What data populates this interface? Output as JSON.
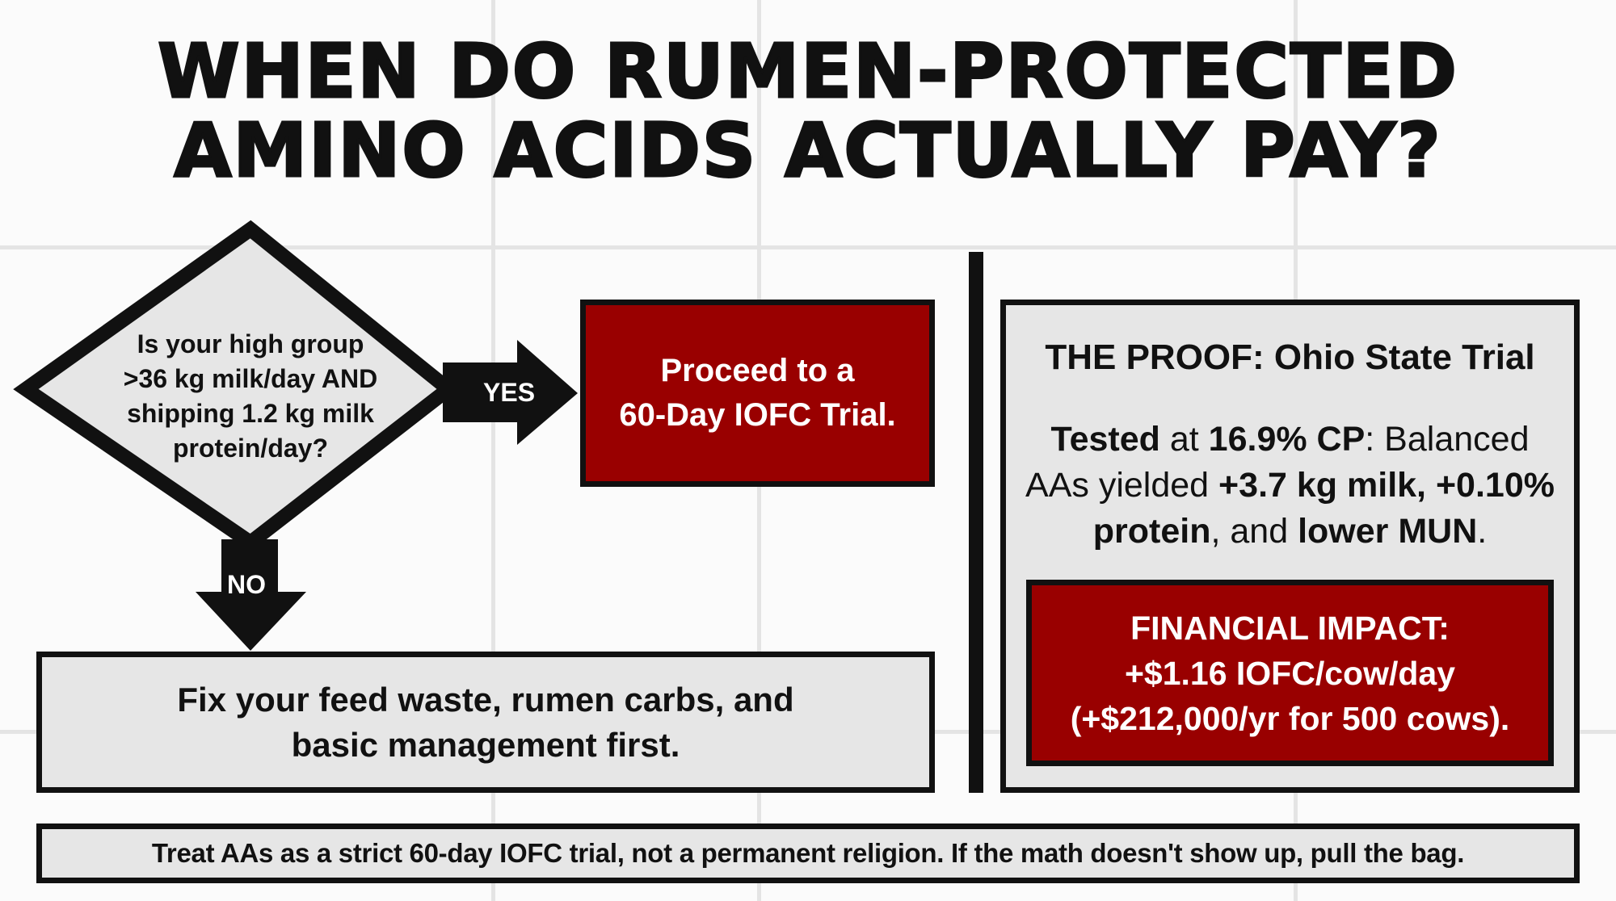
{
  "title": {
    "line1": "WHEN DO RUMEN-PROTECTED",
    "line2": "AMINO ACIDS ACTUALLY PAY?"
  },
  "decision": {
    "question_lines": [
      "Is your high group",
      ">36 kg milk/day AND",
      "shipping 1.2 kg milk",
      "protein/day?"
    ],
    "yes_label": "YES",
    "no_label": "NO"
  },
  "yes_outcome": {
    "lines": [
      "Proceed to a",
      "60-Day IOFC Trial."
    ]
  },
  "no_outcome": {
    "lines": [
      "Fix your feed waste, rumen carbs, and",
      "basic management first."
    ]
  },
  "proof": {
    "title": "THE PROOF: Ohio State Trial",
    "body": {
      "t1": "Tested",
      "t2": " at ",
      "t3": "16.9% CP",
      "t4": ": Balanced",
      "t5": "AAs yielded ",
      "t6": "+3.7 kg milk, +0.10%",
      "t7": "protein",
      "t8": ", and ",
      "t9": "lower MUN",
      "t10": "."
    },
    "financial": {
      "lines": [
        "FINANCIAL IMPACT:",
        "+$1.16 IOFC/cow/day",
        "(+$212,000/yr for 500 cows)."
      ]
    }
  },
  "footer": "Treat AAs as a strict 60-day IOFC trial, not a permanent religion. If the math doesn't show up, pull the bag.",
  "colors": {
    "accent_red": "#990000",
    "panel_grey": "#e6e6e6",
    "border": "#111111"
  }
}
